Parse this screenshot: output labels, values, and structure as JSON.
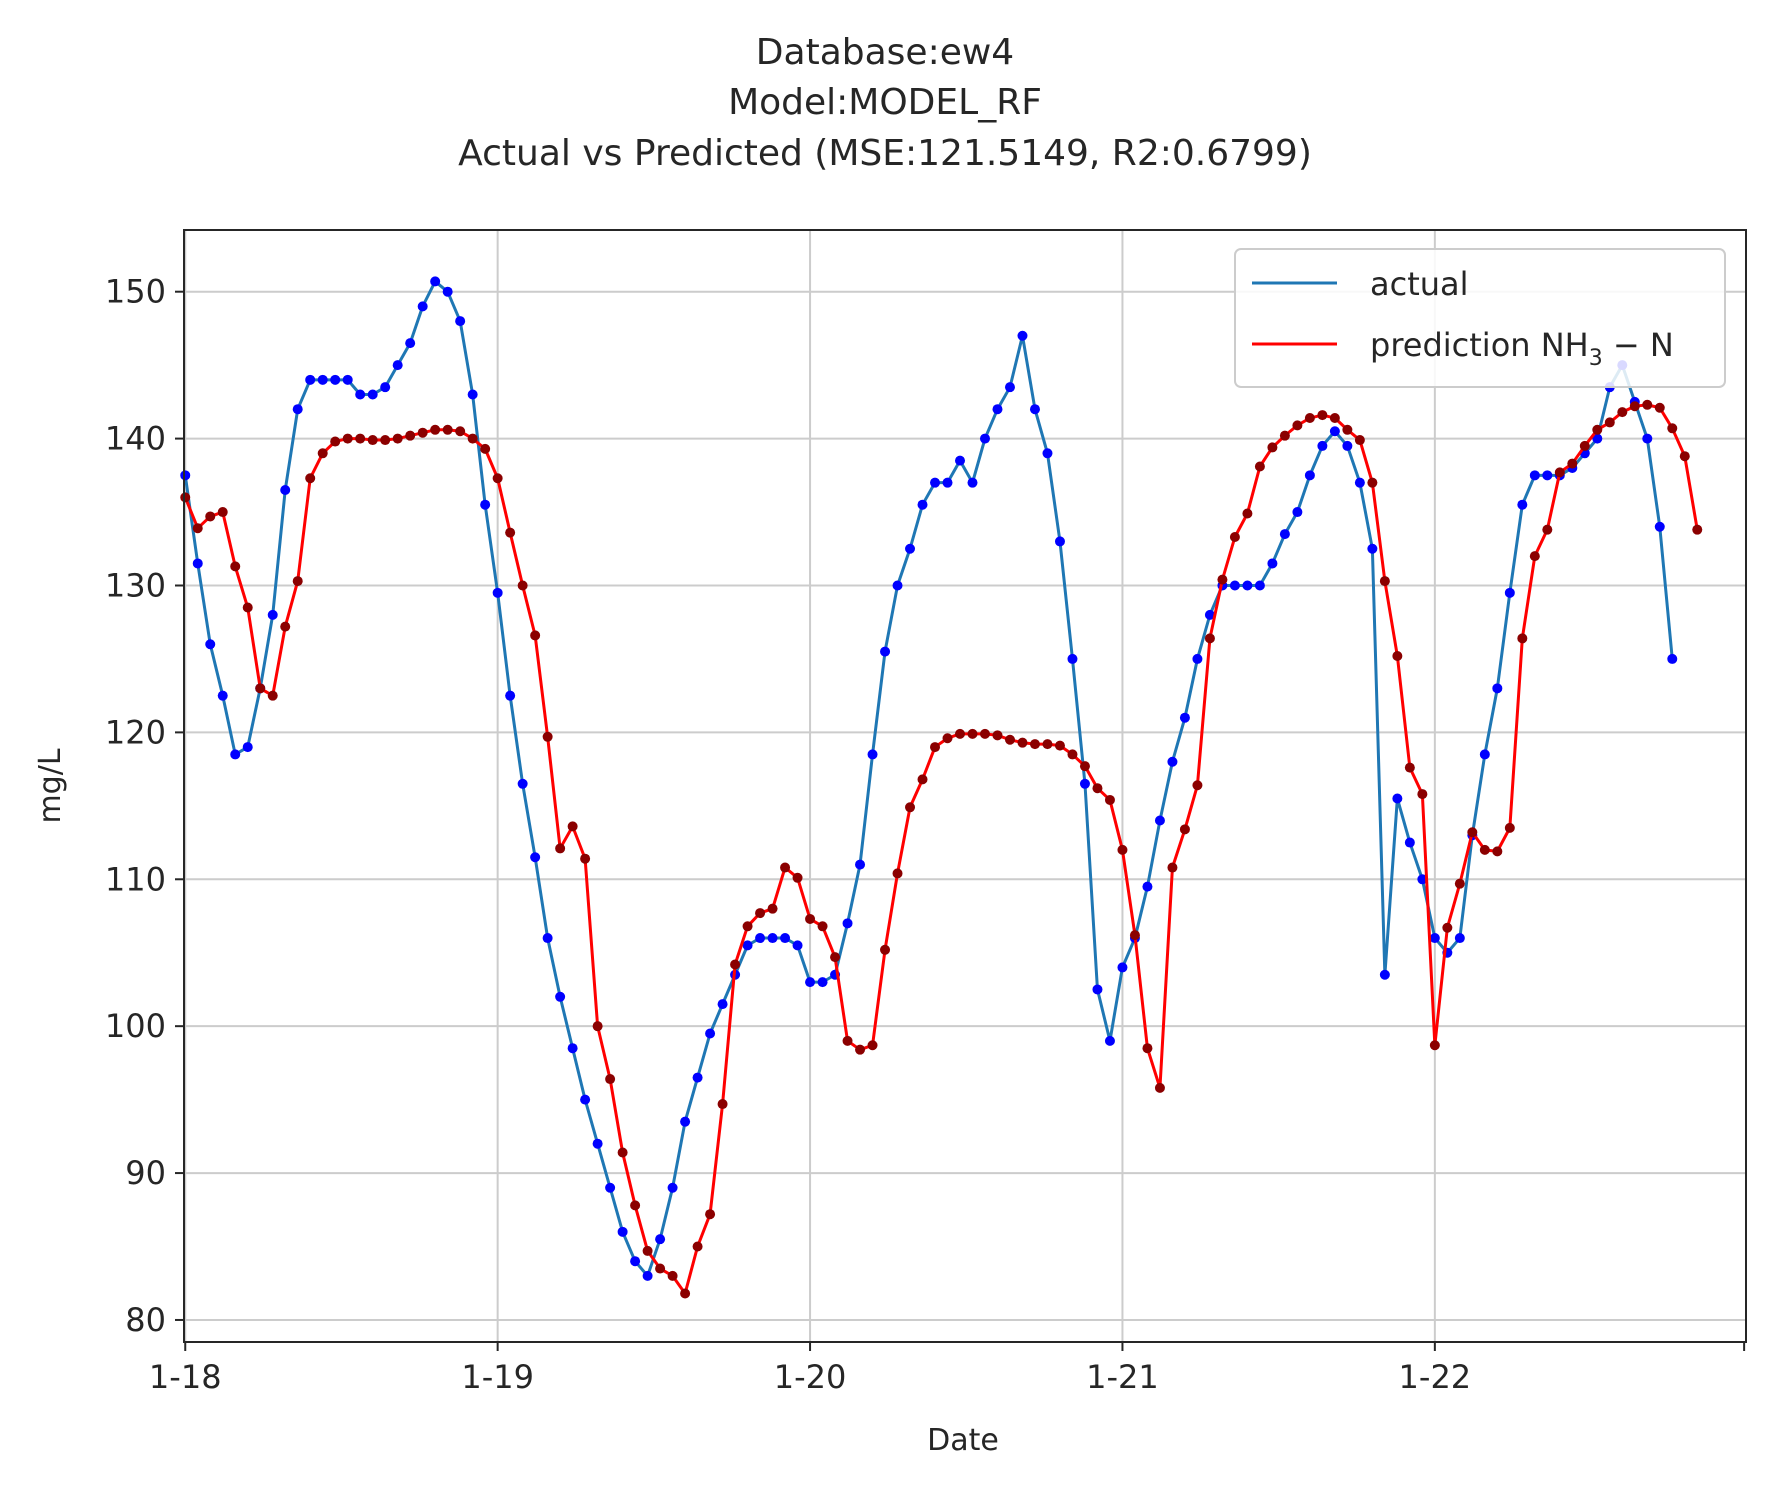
{
  "chart_data": {
    "type": "line",
    "title": [
      "Database:ew4",
      "Model:MODEL_RF",
      "Actual vs Predicted (MSE:121.5149, R2:0.6799)"
    ],
    "xlabel": "Date",
    "ylabel": "mg/L",
    "xlim": [
      -0.1,
      124.9
    ],
    "ylim": [
      78.5,
      154.2
    ],
    "xticks": [
      {
        "x": 0,
        "label": "1-18"
      },
      {
        "x": 25,
        "label": "1-19"
      },
      {
        "x": 50,
        "label": "1-20"
      },
      {
        "x": 75,
        "label": "1-21"
      },
      {
        "x": 100,
        "label": "1-22"
      }
    ],
    "yticks": [
      80,
      90,
      100,
      110,
      120,
      130,
      140,
      150
    ],
    "grid": true,
    "legend": {
      "position": "top-right",
      "entries": [
        "actual",
        "prediction NH3 − N"
      ]
    },
    "colors": {
      "actual": "#1f77b4",
      "actual_markers": "#0000ff",
      "prediction": "#ff0000",
      "prediction_markers": "#8b0000"
    },
    "series": [
      {
        "name": "actual",
        "values": [
          137.5,
          131.5,
          126,
          122.5,
          118.5,
          119,
          123,
          128,
          136.5,
          142,
          144,
          144,
          144,
          144,
          143,
          143,
          143.5,
          145,
          146.5,
          149,
          150.7,
          150,
          148,
          143,
          135.5,
          129.5,
          122.5,
          116.5,
          111.5,
          106,
          102,
          98.5,
          95,
          92,
          89,
          86,
          84,
          83,
          85.5,
          89,
          93.5,
          96.5,
          99.5,
          101.5,
          103.5,
          105.5,
          106,
          106,
          106,
          105.5,
          103,
          103,
          103.5,
          107,
          111,
          118.5,
          125.5,
          130,
          132.5,
          135.5,
          137,
          137,
          138.5,
          137,
          140,
          142,
          143.5,
          147,
          142,
          139,
          133,
          125,
          116.5,
          102.5,
          99,
          104,
          106,
          109.5,
          114,
          118,
          121,
          125,
          128,
          130,
          130,
          130,
          130,
          131.5,
          133.5,
          135,
          137.5,
          139.5,
          140.5,
          139.5,
          137,
          132.5,
          103.5,
          115.5,
          112.5,
          110,
          106,
          105,
          106,
          113,
          118.5,
          123,
          129.5,
          135.5,
          137.5,
          137.5,
          137.5,
          138,
          139,
          140,
          143.5,
          145,
          142.5,
          140,
          134,
          125
        ]
      },
      {
        "name": "prediction NH3 − N",
        "values": [
          136,
          133.9,
          134.7,
          135,
          131.3,
          128.5,
          123,
          122.5,
          127.2,
          130.3,
          137.3,
          139,
          139.8,
          140,
          140,
          139.9,
          139.9,
          140,
          140.2,
          140.4,
          140.6,
          140.6,
          140.5,
          140,
          139.3,
          137.3,
          133.6,
          130,
          126.6,
          119.7,
          112.1,
          113.6,
          111.4,
          100,
          96.4,
          91.4,
          87.8,
          84.7,
          83.5,
          83,
          81.8,
          85,
          87.2,
          94.7,
          104.2,
          106.8,
          107.7,
          108,
          110.8,
          110.1,
          107.3,
          106.8,
          104.7,
          99,
          98.4,
          98.7,
          105.2,
          110.4,
          114.9,
          116.8,
          119,
          119.6,
          119.9,
          119.9,
          119.9,
          119.8,
          119.5,
          119.3,
          119.2,
          119.2,
          119.1,
          118.5,
          117.7,
          116.2,
          115.4,
          112,
          106.2,
          98.5,
          95.8,
          110.8,
          113.4,
          116.4,
          126.4,
          130.4,
          133.3,
          134.9,
          138.1,
          139.4,
          140.2,
          140.9,
          141.4,
          141.6,
          141.4,
          140.6,
          139.9,
          137,
          130.3,
          125.2,
          117.6,
          115.8,
          98.7,
          106.7,
          109.7,
          113.2,
          112,
          111.9,
          113.5,
          126.4,
          132,
          133.8,
          137.7,
          138.3,
          139.5,
          140.6,
          141.1,
          141.8,
          142.2,
          142.3,
          142.1,
          140.7,
          138.8,
          133.8
        ]
      }
    ]
  }
}
